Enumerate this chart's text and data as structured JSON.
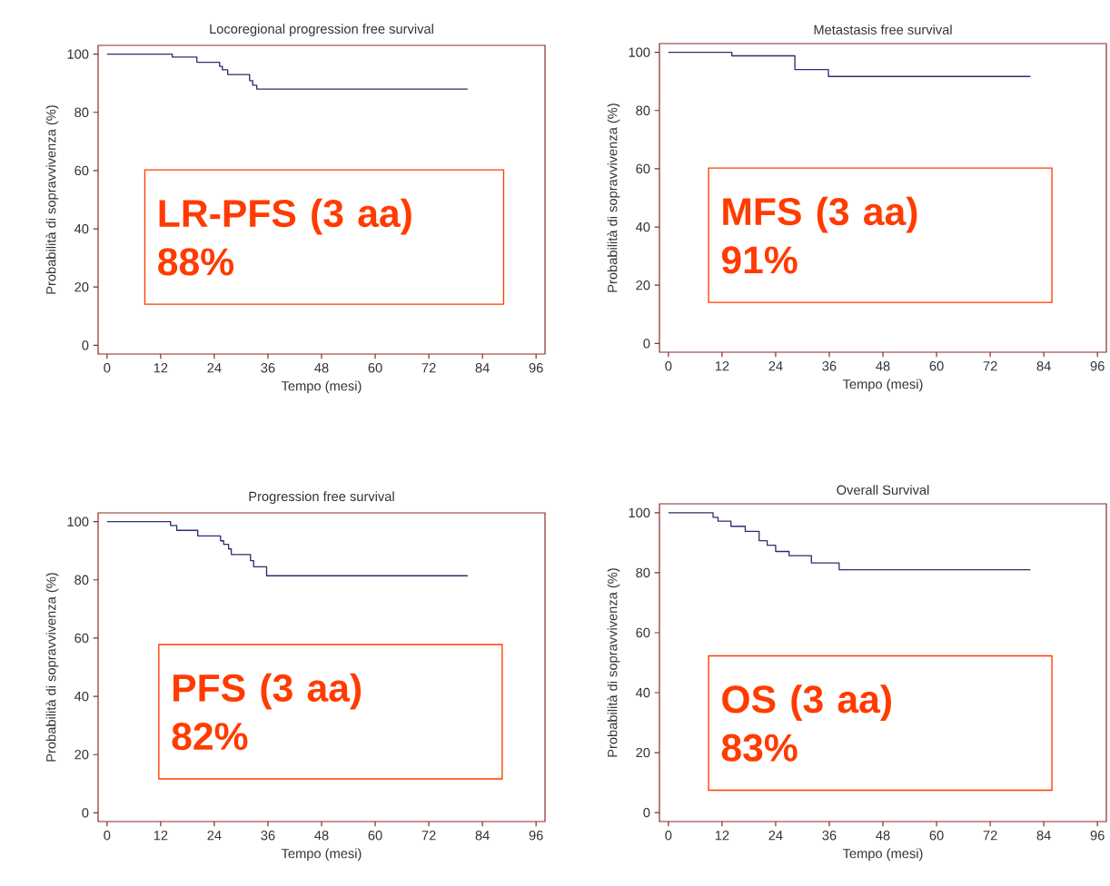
{
  "chart_data": [
    {
      "type": "step",
      "title": "Locoregional progression free survival",
      "xlabel": "Tempo (mesi)",
      "ylabel": "Probabilità di sopravvivenza (%)",
      "color": "#2b2f6e",
      "x": [
        0,
        14.6,
        20.1,
        25.2,
        25.8,
        27.0,
        31.9,
        32.6,
        33.5,
        80.7
      ],
      "values": [
        100,
        99,
        97.2,
        95.8,
        94.6,
        93,
        90.9,
        89.3,
        88,
        88
      ],
      "xlim": [
        -2,
        98
      ],
      "ylim": [
        -3,
        103
      ],
      "xticks": [
        0,
        12,
        24,
        36,
        48,
        60,
        72,
        84,
        96
      ],
      "yticks": [
        0,
        20,
        40,
        60,
        80,
        100
      ],
      "annotations": [
        "LR-PFS (3 aa)",
        "88%"
      ]
    },
    {
      "type": "step",
      "title": "Metastasis free survival",
      "xlabel": "Tempo (mesi)",
      "ylabel": "Probabilità di sopravvivenza (%)",
      "color": "#2b2f6e",
      "x": [
        0,
        14.2,
        28.3,
        35.8,
        81
      ],
      "values": [
        100,
        98.8,
        94.1,
        91.7,
        91.7
      ],
      "xlim": [
        -2,
        98
      ],
      "ylim": [
        -3,
        103
      ],
      "xticks": [
        0,
        12,
        24,
        36,
        48,
        60,
        72,
        84,
        96
      ],
      "yticks": [
        0,
        20,
        40,
        60,
        80,
        100
      ],
      "annotations": [
        "MFS (3 aa)",
        "91%"
      ]
    },
    {
      "type": "step",
      "title": "Progression free survival",
      "xlabel": "Tempo (mesi)",
      "ylabel": "Probabilità di sopravvivenza (%)",
      "color": "#2b2f6e",
      "x": [
        0,
        14.2,
        15.6,
        20.3,
        25.4,
        26.1,
        27.2,
        27.8,
        32.1,
        32.8,
        35.7,
        80.7
      ],
      "values": [
        100,
        98.7,
        97,
        95.1,
        93.4,
        92.2,
        90.6,
        88.7,
        86.6,
        84.5,
        81.4,
        81.4
      ],
      "xlim": [
        -2,
        98
      ],
      "ylim": [
        -3,
        103
      ],
      "xticks": [
        0,
        12,
        24,
        36,
        48,
        60,
        72,
        84,
        96
      ],
      "yticks": [
        0,
        20,
        40,
        60,
        80,
        100
      ],
      "annotations": [
        "PFS (3 aa)",
        "82%"
      ]
    },
    {
      "type": "step",
      "title": "Overall Survival",
      "xlabel": "Tempo (mesi)",
      "ylabel": "Probabilità di sopravvivenza (%)",
      "color": "#2b2f6e",
      "x": [
        0,
        10.0,
        11.1,
        14.0,
        17.2,
        20.3,
        22.1,
        24.0,
        27.0,
        32.0,
        38.2,
        81.0
      ],
      "values": [
        100,
        98.5,
        97.2,
        95.5,
        93.8,
        90.7,
        89.2,
        87.1,
        85.7,
        83.3,
        81.0,
        81.0
      ],
      "xlim": [
        -2,
        98
      ],
      "ylim": [
        -3,
        103
      ],
      "xticks": [
        0,
        12,
        24,
        36,
        48,
        60,
        72,
        84,
        96
      ],
      "yticks": [
        0,
        20,
        40,
        60,
        80,
        100
      ],
      "annotations": [
        "OS (3 aa)",
        "83%"
      ]
    }
  ]
}
